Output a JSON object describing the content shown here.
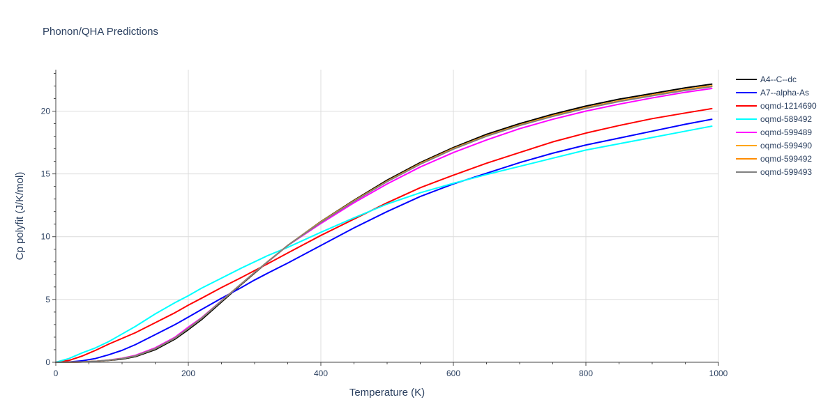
{
  "chart_data": {
    "type": "line",
    "title": "Phonon/QHA Predictions",
    "xlabel": "Temperature (K)",
    "ylabel": "Cp polyfit (J/K/mol)",
    "xlim": [
      0,
      1000
    ],
    "ylim": [
      0,
      23.3
    ],
    "xticks": [
      0,
      200,
      400,
      600,
      800,
      1000
    ],
    "yticks": [
      0,
      5,
      10,
      15,
      20
    ],
    "grid": true,
    "legend_position": "right",
    "x": [
      0,
      20,
      40,
      60,
      80,
      100,
      120,
      150,
      180,
      200,
      220,
      250,
      280,
      300,
      320,
      350,
      400,
      450,
      500,
      550,
      600,
      650,
      700,
      750,
      800,
      850,
      900,
      950,
      990
    ],
    "series": [
      {
        "name": "A4--C--dc",
        "color": "#000000",
        "values": [
          0,
          0.01,
          0.03,
          0.07,
          0.15,
          0.25,
          0.45,
          1.0,
          1.85,
          2.6,
          3.4,
          4.8,
          6.2,
          7.1,
          8.0,
          9.3,
          11.2,
          12.9,
          14.5,
          15.9,
          17.1,
          18.15,
          19.0,
          19.75,
          20.4,
          20.95,
          21.4,
          21.85,
          22.15
        ]
      },
      {
        "name": "A7--alpha-As",
        "color": "#0000ff",
        "values": [
          0,
          0.03,
          0.12,
          0.3,
          0.6,
          0.95,
          1.4,
          2.2,
          3.0,
          3.6,
          4.2,
          5.1,
          5.95,
          6.55,
          7.1,
          7.9,
          9.3,
          10.7,
          12.0,
          13.2,
          14.2,
          15.05,
          15.9,
          16.65,
          17.3,
          17.85,
          18.4,
          18.95,
          19.35
        ]
      },
      {
        "name": "oqmd-1214690",
        "color": "#ff0000",
        "values": [
          0,
          0.15,
          0.5,
          0.95,
          1.45,
          1.9,
          2.35,
          3.15,
          3.95,
          4.55,
          5.1,
          5.95,
          6.75,
          7.3,
          7.85,
          8.7,
          10.1,
          11.4,
          12.7,
          13.9,
          14.9,
          15.85,
          16.7,
          17.55,
          18.25,
          18.85,
          19.4,
          19.85,
          20.2
        ]
      },
      {
        "name": "oqmd-589492",
        "color": "#00ffff",
        "values": [
          0,
          0.3,
          0.75,
          1.15,
          1.65,
          2.25,
          2.85,
          3.85,
          4.75,
          5.3,
          5.9,
          6.7,
          7.5,
          8.0,
          8.5,
          9.15,
          10.35,
          11.5,
          12.6,
          13.5,
          14.25,
          14.95,
          15.6,
          16.25,
          16.9,
          17.4,
          17.9,
          18.4,
          18.8
        ]
      },
      {
        "name": "oqmd-599489",
        "color": "#ff00ff",
        "values": [
          0,
          0.01,
          0.03,
          0.08,
          0.18,
          0.32,
          0.55,
          1.15,
          2.0,
          2.8,
          3.55,
          4.9,
          6.25,
          7.15,
          8.0,
          9.3,
          11.05,
          12.7,
          14.2,
          15.55,
          16.7,
          17.7,
          18.6,
          19.35,
          20.0,
          20.55,
          21.05,
          21.5,
          21.8
        ]
      },
      {
        "name": "oqmd-599490",
        "color": "#ffa500",
        "values": [
          0,
          0.01,
          0.03,
          0.08,
          0.17,
          0.29,
          0.5,
          1.08,
          1.93,
          2.7,
          3.5,
          4.88,
          6.25,
          7.15,
          8.02,
          9.3,
          11.18,
          12.86,
          14.42,
          15.82,
          17.02,
          18.05,
          18.9,
          19.64,
          20.28,
          20.82,
          21.28,
          21.72,
          22.02
        ]
      },
      {
        "name": "oqmd-599492",
        "color": "#ff8c00",
        "values": [
          0,
          0.01,
          0.03,
          0.08,
          0.17,
          0.29,
          0.5,
          1.08,
          1.93,
          2.7,
          3.5,
          4.88,
          6.25,
          7.15,
          8.02,
          9.3,
          11.16,
          12.84,
          14.4,
          15.8,
          17.0,
          18.02,
          18.87,
          19.6,
          20.25,
          20.78,
          21.25,
          21.68,
          21.98
        ]
      },
      {
        "name": "oqmd-599493",
        "color": "#808080",
        "values": [
          0,
          0.01,
          0.03,
          0.08,
          0.17,
          0.29,
          0.5,
          1.08,
          1.93,
          2.7,
          3.5,
          4.88,
          6.25,
          7.15,
          8.02,
          9.3,
          11.14,
          12.82,
          14.38,
          15.77,
          16.97,
          18.0,
          18.85,
          19.58,
          20.22,
          20.76,
          21.22,
          21.65,
          21.95
        ]
      }
    ]
  }
}
